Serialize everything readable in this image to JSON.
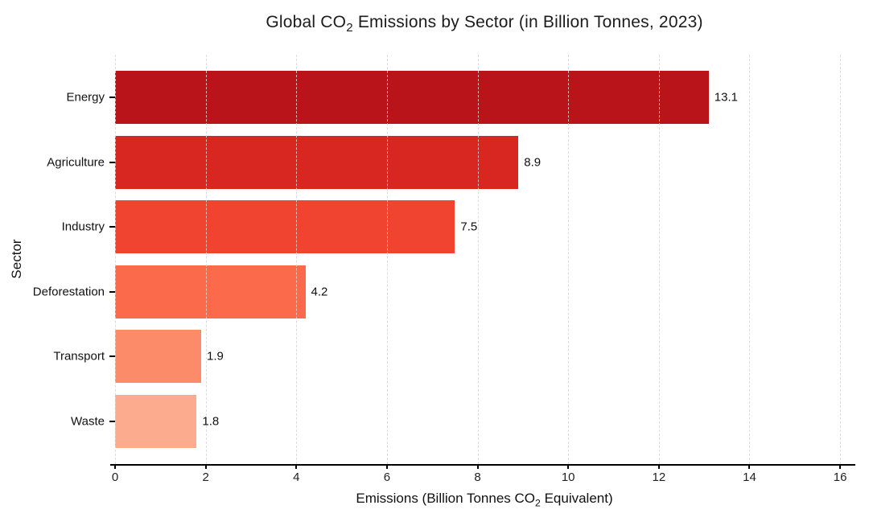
{
  "title": {
    "pre": "Global CO",
    "sub": "2",
    "post": " Emissions by Sector (in Billion Tonnes, 2023)"
  },
  "axes": {
    "ylabel": "Sector",
    "xlabel": {
      "pre": "Emissions (Billion Tonnes CO",
      "sub": "2",
      "post": " Equivalent)"
    }
  },
  "chart_data": {
    "type": "bar",
    "orientation": "horizontal",
    "title": "Global CO₂ Emissions by Sector (in Billion Tonnes, 2023)",
    "xlabel": "Emissions (Billion Tonnes CO₂ Equivalent)",
    "ylabel": "Sector",
    "categories": [
      "Energy",
      "Agriculture",
      "Industry",
      "Deforestation",
      "Transport",
      "Waste"
    ],
    "values": [
      13.1,
      8.9,
      7.5,
      4.2,
      1.9,
      1.8
    ],
    "value_labels": [
      "13.1",
      "8.9",
      "7.5",
      "4.2",
      "1.9",
      "1.8"
    ],
    "bar_colors": [
      "#b81419",
      "#d82620",
      "#f04431",
      "#fb6a4a",
      "#fb8b69",
      "#fcab8f"
    ],
    "xticks": [
      0,
      2,
      4,
      6,
      8,
      10,
      12,
      14,
      16
    ],
    "xlim": [
      0,
      16.3
    ],
    "grid": "vertical-dashed",
    "legend": "none"
  },
  "style_colors": {
    "axis_line": "#000000",
    "gridline": "#d6d6d6",
    "text": "#111111",
    "background": "#ffffff"
  }
}
